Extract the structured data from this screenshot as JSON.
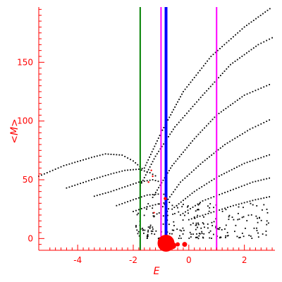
{
  "chart_data": {
    "type": "scatter",
    "title": "",
    "xlabel": "E",
    "ylabel": "<M>",
    "xlim": [
      -5.4,
      3.1
    ],
    "ylim": [
      -10,
      197
    ],
    "x_ticks": [
      -4,
      -2,
      0,
      2
    ],
    "y_ticks": [
      0,
      50,
      100,
      150
    ],
    "x_tick_labels": [
      "-4",
      "-2",
      "0",
      "2"
    ],
    "y_tick_labels": [
      "0",
      "50",
      "100",
      "150"
    ],
    "grid": false,
    "axis_color": "#ff0000",
    "point_color": "#000000",
    "vertical_lines": [
      {
        "x": -1.75,
        "color": "#008000"
      },
      {
        "x": -1.0,
        "color": "#ff00ff"
      },
      {
        "x": -0.82,
        "color": "#0000ff"
      },
      {
        "x": 1.0,
        "color": "#ff00ff"
      }
    ],
    "curves": [
      {
        "points": [
          [
            -5.4,
            53
          ],
          [
            -4.5,
            62
          ],
          [
            -3.5,
            69
          ],
          [
            -3.0,
            72
          ],
          [
            -2.4,
            71
          ],
          [
            -2.0,
            66
          ],
          [
            -1.6,
            58
          ]
        ]
      },
      {
        "points": [
          [
            -4.4,
            43
          ],
          [
            -3.5,
            50
          ],
          [
            -2.8,
            55
          ],
          [
            -2.3,
            58
          ],
          [
            -1.8,
            59
          ],
          [
            -1.4,
            56
          ],
          [
            -1.1,
            52
          ]
        ]
      },
      {
        "points": [
          [
            -3.4,
            36
          ],
          [
            -2.8,
            40
          ],
          [
            -2.3,
            44
          ],
          [
            -1.8,
            48
          ],
          [
            -1.3,
            50
          ],
          [
            -1.0,
            48
          ]
        ]
      },
      {
        "points": [
          [
            -2.6,
            28
          ],
          [
            -2.0,
            33
          ],
          [
            -1.5,
            37
          ],
          [
            -1.0,
            38
          ],
          [
            -0.7,
            37
          ]
        ]
      },
      {
        "points": [
          [
            -2.0,
            23
          ],
          [
            -1.5,
            27
          ],
          [
            -1.0,
            30
          ],
          [
            -0.6,
            31
          ]
        ]
      },
      {
        "points": [
          [
            -1.75,
            45
          ],
          [
            -1.2,
            70
          ],
          [
            -0.5,
            95
          ],
          [
            0.5,
            122
          ],
          [
            1.5,
            148
          ],
          [
            2.5,
            165
          ],
          [
            3.1,
            172
          ]
        ]
      },
      {
        "points": [
          [
            -1.6,
            60
          ],
          [
            -1.0,
            90
          ],
          [
            -0.2,
            125
          ],
          [
            0.8,
            155
          ],
          [
            2.0,
            180
          ],
          [
            3.0,
            197
          ]
        ]
      },
      {
        "points": [
          [
            -1.3,
            35
          ],
          [
            -0.6,
            62
          ],
          [
            0.2,
            85
          ],
          [
            1.0,
            105
          ],
          [
            2.0,
            122
          ],
          [
            3.0,
            132
          ]
        ]
      },
      {
        "points": [
          [
            -1.0,
            25
          ],
          [
            -0.3,
            48
          ],
          [
            0.5,
            65
          ],
          [
            1.3,
            80
          ],
          [
            2.2,
            93
          ],
          [
            3.0,
            102
          ]
        ]
      },
      {
        "points": [
          [
            -0.6,
            25
          ],
          [
            0.2,
            40
          ],
          [
            1.0,
            52
          ],
          [
            2.0,
            64
          ],
          [
            3.0,
            72
          ]
        ]
      },
      {
        "points": [
          [
            -0.3,
            20
          ],
          [
            0.5,
            32
          ],
          [
            1.4,
            40
          ],
          [
            2.3,
            48
          ],
          [
            3.0,
            52
          ]
        ]
      },
      {
        "points": [
          [
            0.0,
            16
          ],
          [
            0.8,
            22
          ],
          [
            1.6,
            28
          ],
          [
            2.4,
            33
          ],
          [
            3.0,
            36
          ]
        ]
      }
    ],
    "scatter_cloud": {
      "x_range": [
        -1.9,
        3.0
      ],
      "y_range": [
        0,
        30
      ],
      "count": 220
    },
    "red_markers": [
      {
        "x": -1.35,
        "y": 58,
        "size": 1.2
      },
      {
        "x": -1.3,
        "y": 53,
        "size": 1.2
      },
      {
        "x": -1.45,
        "y": 48,
        "size": 1.2
      },
      {
        "x": -1.25,
        "y": 22,
        "size": 1.2
      },
      {
        "x": -1.05,
        "y": -2,
        "size": 2.5
      },
      {
        "x": -0.85,
        "y": 34,
        "size": 2.2
      },
      {
        "x": -0.82,
        "y": -4,
        "size": 12
      },
      {
        "x": -0.58,
        "y": -6,
        "size": 5
      },
      {
        "x": -0.4,
        "y": -5,
        "size": 3
      },
      {
        "x": -0.15,
        "y": -5,
        "size": 3.5
      }
    ]
  }
}
